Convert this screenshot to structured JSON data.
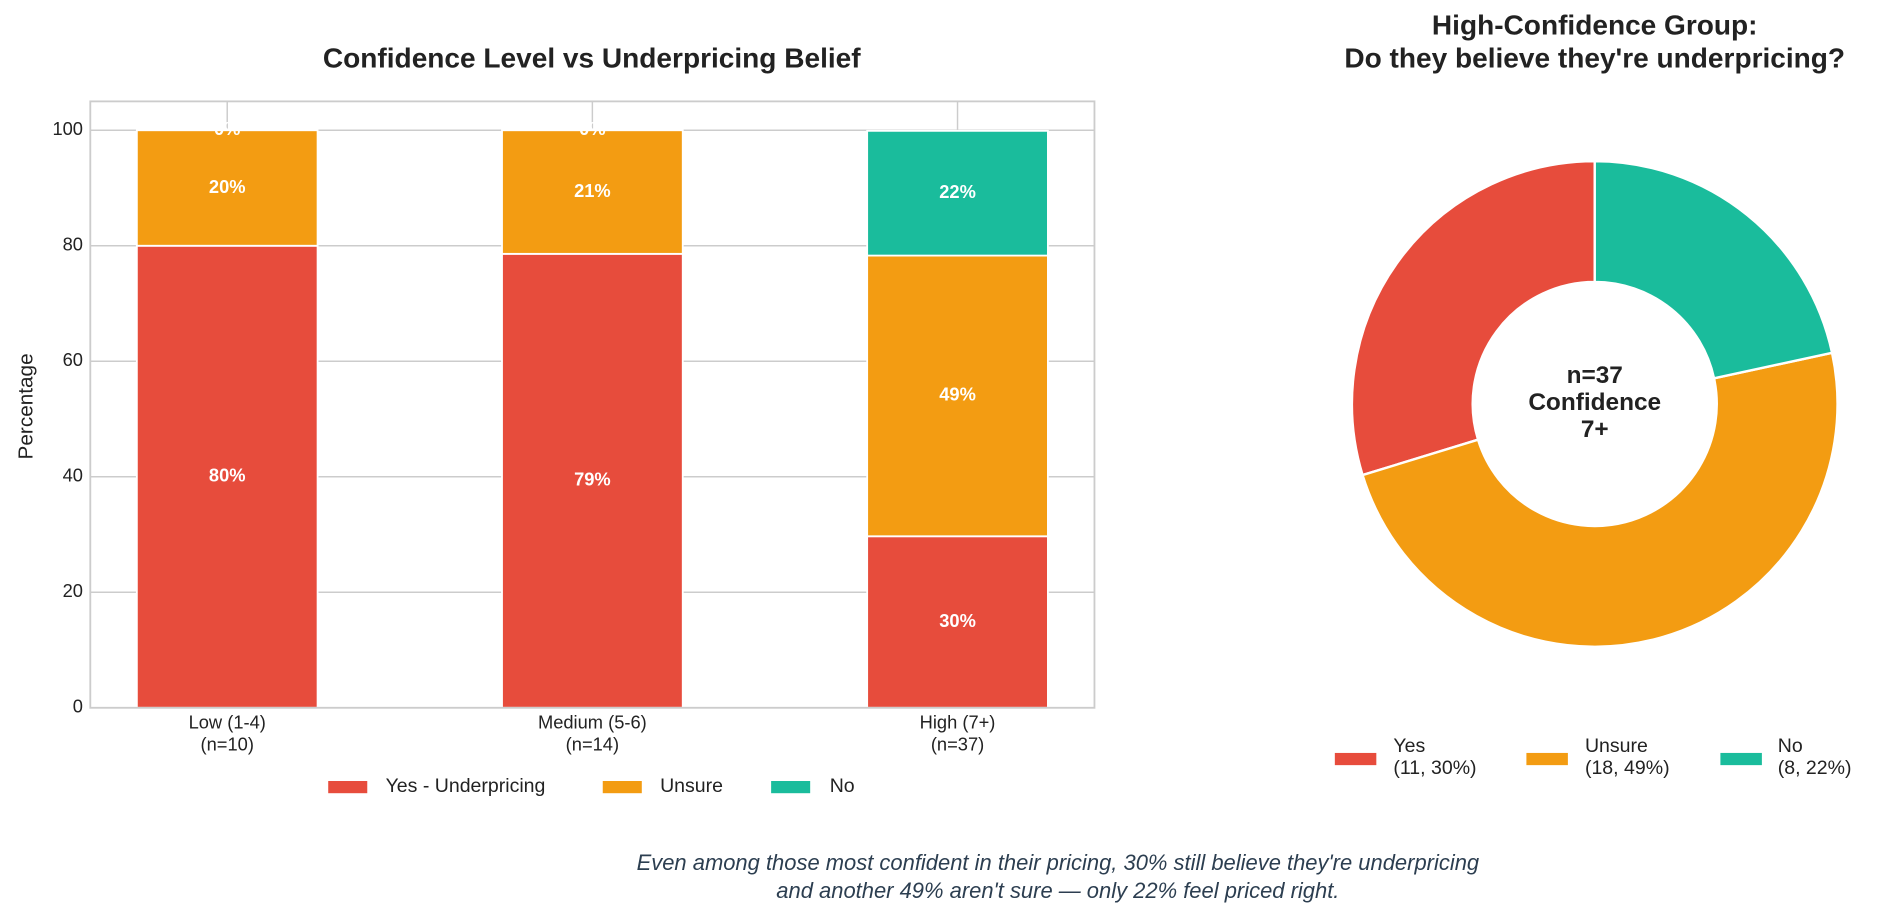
{
  "chart_data": [
    {
      "type": "bar",
      "stacked": true,
      "title": "Confidence Level vs Underpricing Belief",
      "ylabel": "Percentage",
      "categories": [
        "Low (1-4)\n(n=10)",
        "Medium (5-6)\n(n=14)",
        "High (7+)\n(n=37)"
      ],
      "series": [
        {
          "name": "Yes - Underpricing",
          "color": "#e74c3c",
          "values": [
            80,
            78.6,
            29.7
          ],
          "value_labels": [
            "80%",
            "79%",
            "30%"
          ]
        },
        {
          "name": "Unsure",
          "color": "#f39c12",
          "values": [
            20,
            21.4,
            48.6
          ],
          "value_labels": [
            "20%",
            "21%",
            "49%"
          ]
        },
        {
          "name": "No",
          "color": "#1abc9c",
          "values": [
            0,
            0,
            21.6
          ],
          "value_labels": [
            "0%",
            "0%",
            "22%"
          ]
        }
      ],
      "ylim": [
        0,
        105
      ],
      "yticks": [
        0,
        20,
        40,
        60,
        80,
        100
      ],
      "grid": true,
      "legend": "lower center"
    },
    {
      "type": "pie",
      "donut": true,
      "startangle": 90,
      "counterclock": true,
      "title": "High-Confidence Group:\nDo they believe they're underpricing?",
      "categories": [
        "Yes",
        "Unsure",
        "No"
      ],
      "values": [
        11,
        18,
        8
      ],
      "value_labels": [
        "(11, 30%)",
        "(18, 49%)",
        "(8, 22%)"
      ],
      "colors": [
        "#e74c3c",
        "#f39c12",
        "#1abc9c"
      ],
      "center_text": "n=37\nConfidence\n7+",
      "legend": "lower center"
    }
  ],
  "caption": "Even among those most confident in their pricing, 30% still believe they're underpricing\nand another 49% aren't sure — only 22% feel priced right."
}
